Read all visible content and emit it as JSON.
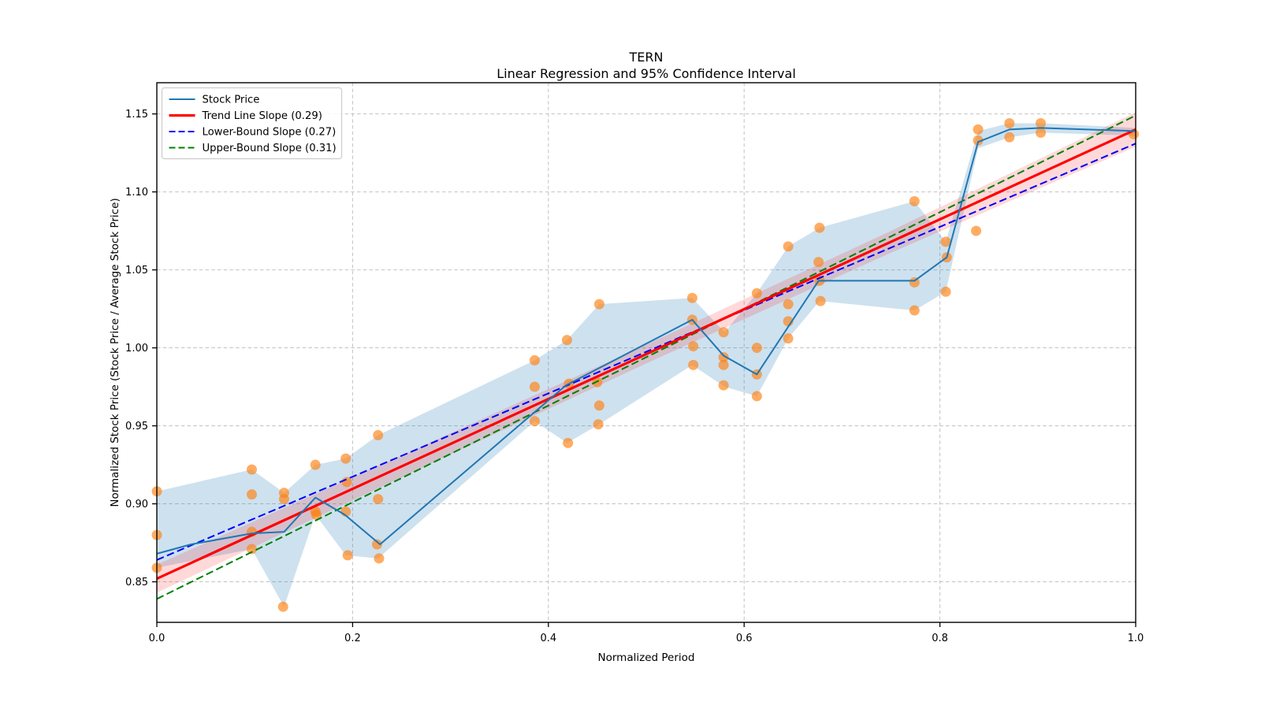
{
  "figure": {
    "title": "TERN",
    "subtitle": "Linear Regression and 95% Confidence Interval",
    "xlabel": "Normalized Period",
    "ylabel": "Normalized Stock Price (Stock Price / Average Stock Price)"
  },
  "chart_data": {
    "type": "line",
    "title": "TERN",
    "subtitle": "Linear Regression and 95% Confidence Interval",
    "xlabel": "Normalized Period",
    "ylabel": "Normalized Stock Price (Stock Price / Average Stock Price)",
    "xlim": [
      0.0,
      1.0
    ],
    "ylim": [
      0.824,
      1.17
    ],
    "xticks": [
      0.0,
      0.2,
      0.4,
      0.6,
      0.8,
      1.0
    ],
    "yticks": [
      0.85,
      0.9,
      0.95,
      1.0,
      1.05,
      1.1,
      1.15
    ],
    "grid": true,
    "grid_style": "dashed",
    "legend_position": "upper left",
    "background": "#ffffff",
    "colors": {
      "stock_line": "#1f77b4",
      "scatter": "#ff7f0e",
      "trend": "#ff0000",
      "lower_bound": "#0000ff",
      "upper_bound": "#008000",
      "grid": "#c2c2c2",
      "spine": "#000000",
      "minmax_band": "rgba(31,119,180,0.22)",
      "confidence_band": "rgba(255,0,0,0.15)"
    },
    "legend": [
      {
        "label": "Stock Price",
        "color": "#1f77b4",
        "dash": false,
        "width": 2
      },
      {
        "label": "Trend Line Slope (0.29)",
        "color": "#ff0000",
        "dash": false,
        "width": 3.2
      },
      {
        "label": "Lower-Bound Slope (0.27)",
        "color": "#0000ff",
        "dash": true,
        "width": 2
      },
      {
        "label": "Upper-Bound Slope (0.31)",
        "color": "#008000",
        "dash": true,
        "width": 2
      }
    ],
    "series": [
      {
        "name": "Stock Price",
        "type": "line",
        "color": "#1f77b4",
        "width": 2,
        "x": [
          0.0,
          0.035,
          0.097,
          0.13,
          0.162,
          0.192,
          0.228,
          0.418,
          0.547,
          0.579,
          0.613,
          0.676,
          0.774,
          0.807,
          0.839,
          0.871,
          0.903,
          1.0
        ],
        "y": [
          0.868,
          0.874,
          0.881,
          0.882,
          0.904,
          0.893,
          0.874,
          0.976,
          1.018,
          0.995,
          0.983,
          1.043,
          1.043,
          1.058,
          1.132,
          1.14,
          1.141,
          1.139
        ]
      },
      {
        "name": "Daily Stock Price",
        "type": "scatter",
        "color": "#ff7f0e",
        "opacity": 0.65,
        "radius": 6.5,
        "x": [
          0.0,
          0.0,
          0.0,
          0.097,
          0.097,
          0.097,
          0.097,
          0.13,
          0.13,
          0.129,
          0.162,
          0.162,
          0.163,
          0.193,
          0.194,
          0.193,
          0.195,
          0.226,
          0.226,
          0.225,
          0.227,
          0.386,
          0.386,
          0.386,
          0.419,
          0.421,
          0.42,
          0.452,
          0.45,
          0.452,
          0.451,
          0.547,
          0.547,
          0.548,
          0.548,
          0.579,
          0.579,
          0.579,
          0.579,
          0.613,
          0.613,
          0.613,
          0.613,
          0.645,
          0.645,
          0.645,
          0.645,
          0.677,
          0.676,
          0.677,
          0.678,
          0.774,
          0.774,
          0.774,
          0.806,
          0.807,
          0.806,
          0.839,
          0.839,
          0.837,
          0.871,
          0.871,
          0.903,
          0.903,
          0.998
        ],
        "y": [
          0.908,
          0.88,
          0.859,
          0.922,
          0.906,
          0.882,
          0.871,
          0.907,
          0.903,
          0.834,
          0.925,
          0.895,
          0.893,
          0.929,
          0.914,
          0.895,
          0.867,
          0.944,
          0.903,
          0.874,
          0.865,
          0.992,
          0.975,
          0.953,
          1.005,
          0.977,
          0.939,
          1.028,
          0.978,
          0.963,
          0.951,
          1.032,
          1.018,
          1.001,
          0.989,
          1.01,
          0.994,
          0.989,
          0.976,
          1.035,
          1.0,
          0.983,
          0.969,
          1.065,
          1.028,
          1.017,
          1.006,
          1.077,
          1.055,
          1.043,
          1.03,
          1.094,
          1.042,
          1.024,
          1.068,
          1.058,
          1.036,
          1.14,
          1.133,
          1.075,
          1.144,
          1.135,
          1.144,
          1.138,
          1.137
        ]
      },
      {
        "name": "Trend Line Slope (0.29)",
        "type": "line",
        "color": "#ff0000",
        "width": 3.2,
        "slope": 0.29,
        "x": [
          0.0,
          1.0
        ],
        "y": [
          0.852,
          1.14
        ]
      },
      {
        "name": "Lower-Bound Slope (0.27)",
        "type": "line",
        "color": "#0000ff",
        "dash": true,
        "width": 2,
        "slope": 0.27,
        "x": [
          0.0,
          1.0
        ],
        "y": [
          0.864,
          1.131
        ]
      },
      {
        "name": "Upper-Bound Slope (0.31)",
        "type": "line",
        "color": "#008000",
        "dash": true,
        "width": 2,
        "slope": 0.31,
        "x": [
          0.0,
          1.0
        ],
        "y": [
          0.839,
          1.149
        ]
      }
    ],
    "bands": [
      {
        "name": "price-min-max-band",
        "color": "rgba(31,119,180,0.22)",
        "x": [
          0.0,
          0.097,
          0.13,
          0.162,
          0.193,
          0.226,
          0.386,
          0.419,
          0.452,
          0.547,
          0.58,
          0.613,
          0.645,
          0.677,
          0.774,
          0.806,
          0.839,
          0.871,
          0.903,
          1.0
        ],
        "upper": [
          0.908,
          0.922,
          0.907,
          0.925,
          0.929,
          0.944,
          0.992,
          1.005,
          1.028,
          1.032,
          1.01,
          1.035,
          1.065,
          1.077,
          1.094,
          1.068,
          1.139,
          1.144,
          1.144,
          1.141
        ],
        "lower": [
          0.859,
          0.871,
          0.834,
          0.893,
          0.867,
          0.865,
          0.953,
          0.939,
          0.951,
          0.989,
          0.975,
          0.969,
          1.006,
          1.03,
          1.024,
          1.036,
          1.128,
          1.135,
          1.138,
          1.136
        ]
      },
      {
        "name": "95-percent-confidence-band",
        "color": "rgba(255,0,0,0.15)",
        "x": [
          0.0,
          0.25,
          0.5,
          0.75,
          1.0
        ],
        "upper": [
          0.861,
          0.931,
          1.002,
          1.075,
          1.151
        ],
        "lower": [
          0.843,
          0.917,
          0.99,
          1.061,
          1.129
        ]
      }
    ]
  }
}
